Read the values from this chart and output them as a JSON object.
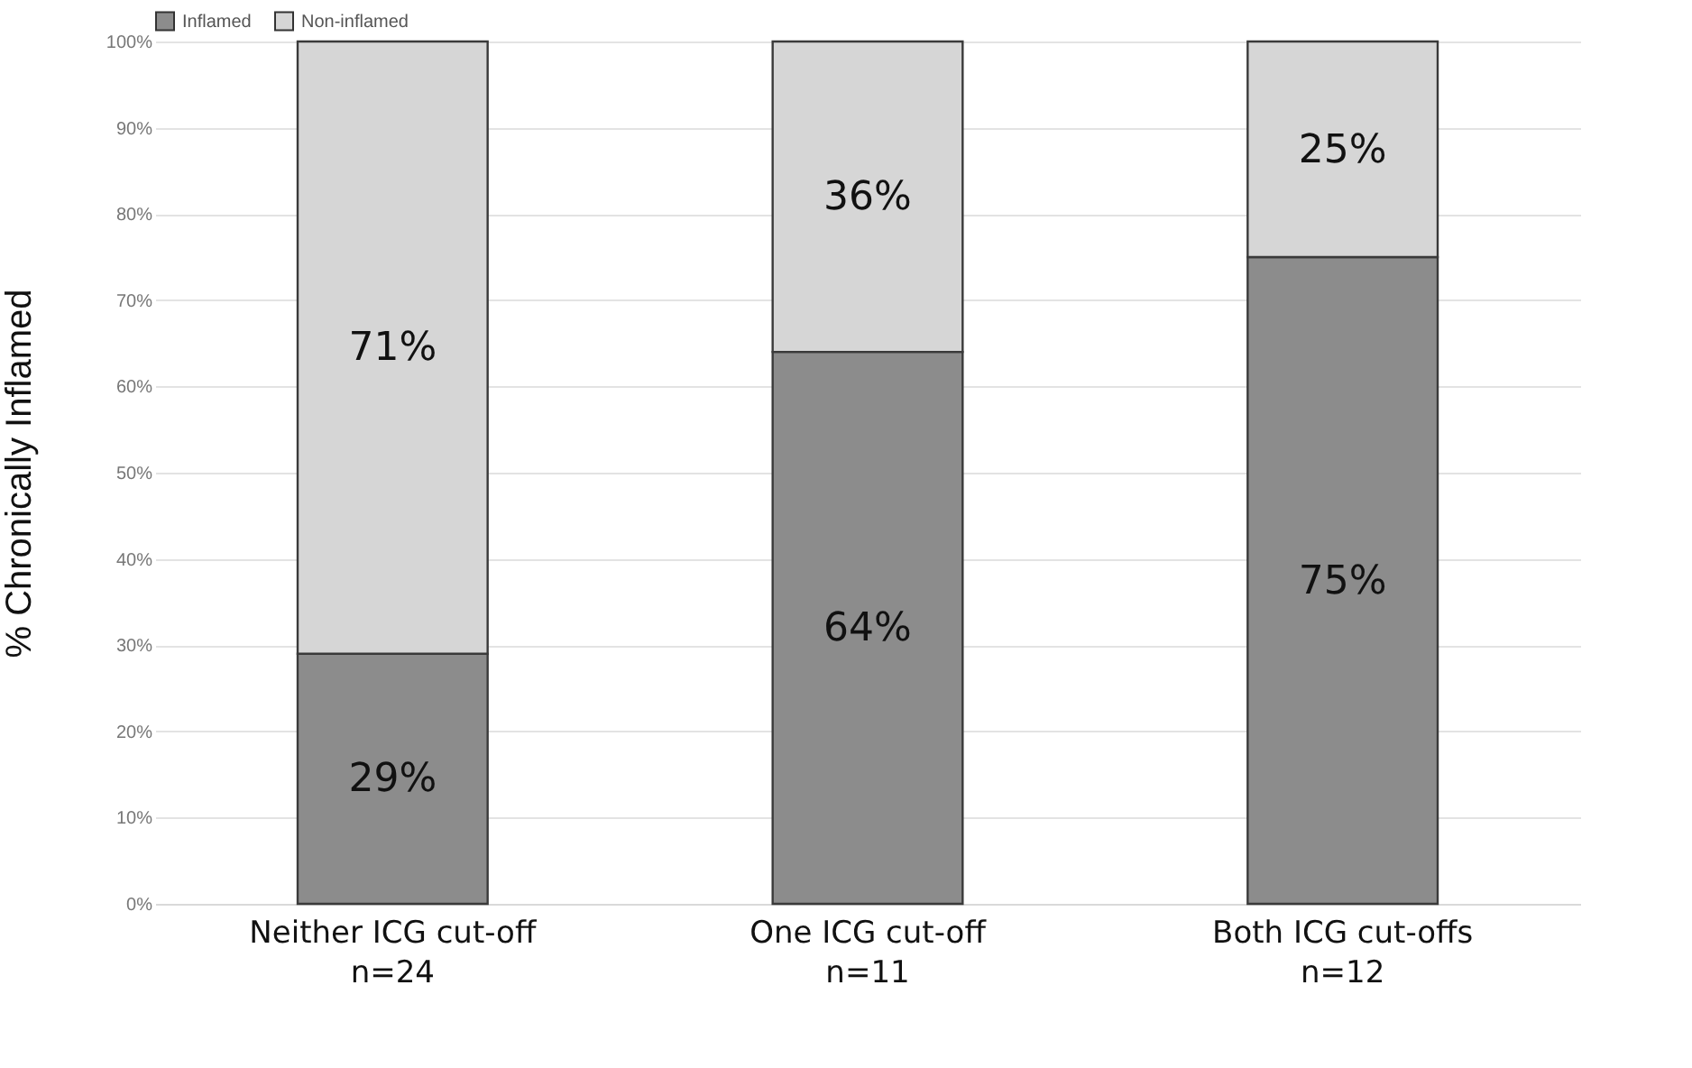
{
  "chart_data": {
    "type": "bar",
    "stacked": true,
    "ylabel": "% Chronically Inflamed",
    "categories": [
      "Neither ICG cut-off\nn=24",
      "One ICG cut-off\nn=11",
      "Both ICG cut-offs\nn=12"
    ],
    "series": [
      {
        "name": "Inflamed",
        "color": "#8c8c8c",
        "values": [
          29,
          64,
          75
        ],
        "value_labels": [
          "29%",
          "64%",
          "75%"
        ]
      },
      {
        "name": "Non-inflamed",
        "color": "#d6d6d6",
        "values": [
          71,
          36,
          25
        ],
        "value_labels": [
          "71%",
          "36%",
          "25%"
        ]
      }
    ],
    "ylim": [
      0,
      100
    ],
    "yticks": [
      {
        "value": 0,
        "label": "0%"
      },
      {
        "value": 10,
        "label": "10%"
      },
      {
        "value": 20,
        "label": "20%"
      },
      {
        "value": 30,
        "label": "30%"
      },
      {
        "value": 40,
        "label": "40%"
      },
      {
        "value": 50,
        "label": "50%"
      },
      {
        "value": 60,
        "label": "60%"
      },
      {
        "value": 70,
        "label": "70%"
      },
      {
        "value": 80,
        "label": "80%"
      },
      {
        "value": 90,
        "label": "90%"
      },
      {
        "value": 100,
        "label": "100%"
      }
    ],
    "grid": "y",
    "legend": "top"
  }
}
